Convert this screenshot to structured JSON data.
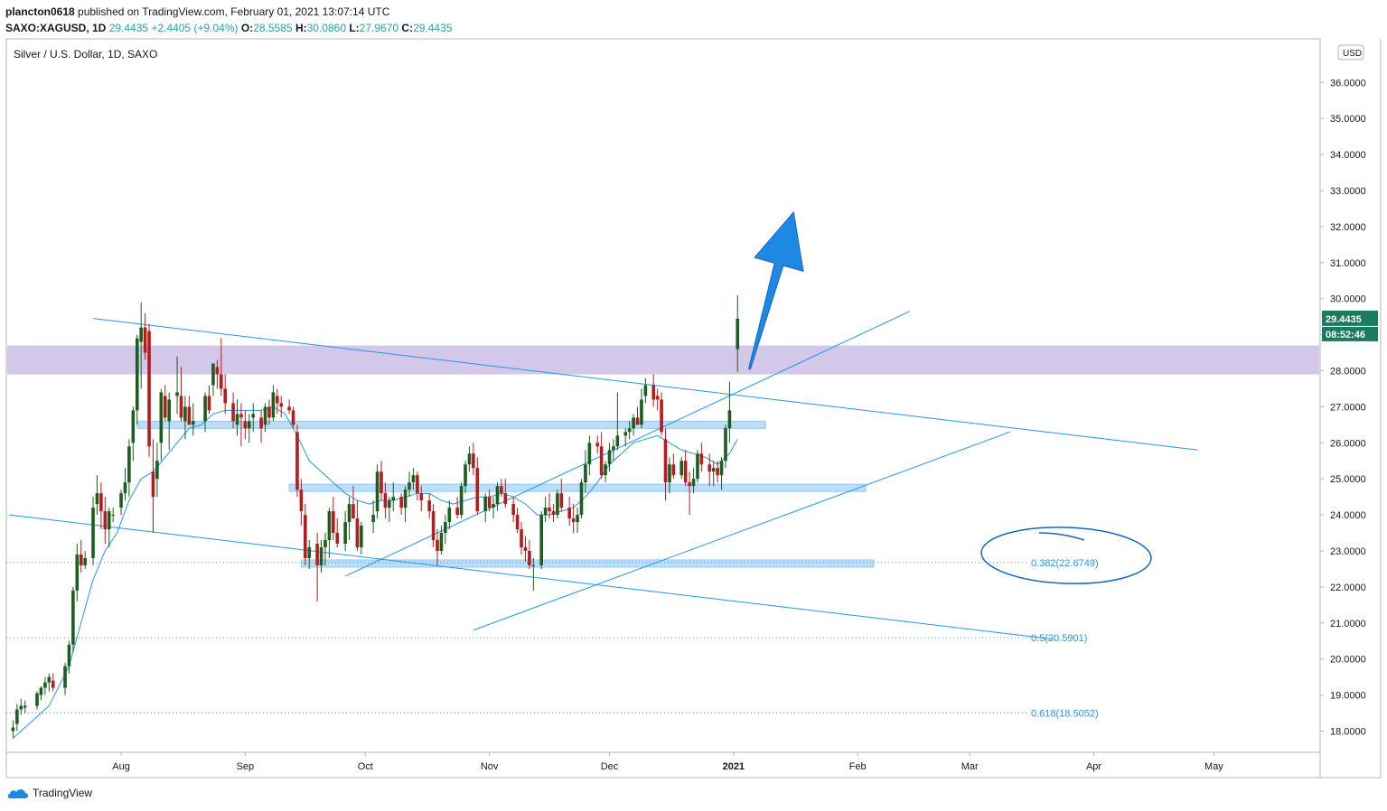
{
  "header": {
    "user": "plancton0618",
    "published_text": " published on TradingView.com, February 01, 2021 13:07:14 UTC",
    "symbol": "SAXO:XAGUSD, 1D",
    "last": "29.4435",
    "change": "+2.4405 (+9.04%)",
    "o_label": "O:",
    "o": "28.5585",
    "h_label": "H:",
    "h": "30.0860",
    "l_label": "L:",
    "l": "27.9670",
    "c_label": "C:",
    "c": "29.4435"
  },
  "footer": {
    "brand": "TradingView"
  },
  "chart_data": {
    "type": "candlestick",
    "title": "Silver / U.S. Dollar, 1D, SAXO",
    "currency_badge": "USD",
    "y_axis": {
      "range": [
        17.3,
        37.1
      ],
      "ticks": [
        "18.0000",
        "19.0000",
        "20.0000",
        "21.0000",
        "22.0000",
        "23.0000",
        "24.0000",
        "25.0000",
        "26.0000",
        "27.0000",
        "28.0000",
        "29.0000",
        "30.0000",
        "31.0000",
        "32.0000",
        "33.0000",
        "34.0000",
        "35.0000",
        "36.0000"
      ]
    },
    "x_axis": {
      "ticks": [
        {
          "label": "Aug",
          "day": 28
        },
        {
          "label": "Sep",
          "day": 59
        },
        {
          "label": "Oct",
          "day": 89
        },
        {
          "label": "Nov",
          "day": 120
        },
        {
          "label": "Dec",
          "day": 150
        },
        {
          "label": "2021",
          "day": 181,
          "bold": true
        },
        {
          "label": "Feb",
          "day": 212
        },
        {
          "label": "Mar",
          "day": 240
        },
        {
          "label": "Apr",
          "day": 271
        },
        {
          "label": "May",
          "day": 301
        }
      ]
    },
    "price_label": "29.4435",
    "countdown": "08:52:46",
    "fib_levels": [
      {
        "label": "0.382(22.6749)",
        "value": 22.6749
      },
      {
        "label": "0.5(20.5901)",
        "value": 20.5901
      },
      {
        "label": "0.618(18.5052)",
        "value": 18.5052
      }
    ],
    "resistance_zone": [
      27.9,
      28.7
    ],
    "support_zones": [
      {
        "from_day": 32,
        "to_day": 189,
        "low": 26.4,
        "high": 26.6
      },
      {
        "from_day": 70,
        "to_day": 214,
        "low": 24.65,
        "high": 24.85
      },
      {
        "from_day": 73,
        "to_day": 216,
        "low": 22.55,
        "high": 22.75
      }
    ],
    "trendlines": [
      {
        "d1": 21,
        "v1": 29.45,
        "d2": 297,
        "v2": 25.8
      },
      {
        "d1": 0,
        "v1": 24.0,
        "d2": 261,
        "v2": 20.55
      },
      {
        "d1": 116,
        "v1": 20.8,
        "d2": 250,
        "v2": 26.3
      },
      {
        "d1": 84,
        "v1": 22.3,
        "d2": 225,
        "v2": 29.65
      }
    ],
    "candles": [
      [
        1,
        18.0,
        18.3,
        17.8,
        18.1
      ],
      [
        2,
        18.2,
        18.75,
        18.0,
        18.6
      ],
      [
        3,
        18.6,
        18.9,
        18.45,
        18.7
      ],
      [
        4,
        18.65,
        18.85,
        18.5,
        18.7
      ],
      [
        7,
        18.7,
        19.1,
        18.6,
        19.05
      ],
      [
        8,
        19.0,
        19.25,
        18.85,
        19.2
      ],
      [
        9,
        19.2,
        19.5,
        19.0,
        19.35
      ],
      [
        10,
        19.35,
        19.6,
        19.1,
        19.5
      ],
      [
        11,
        19.4,
        19.6,
        19.1,
        19.2
      ],
      [
        14,
        19.2,
        19.9,
        19.0,
        19.8
      ],
      [
        15,
        19.8,
        20.5,
        19.6,
        20.4
      ],
      [
        16,
        20.4,
        22.0,
        20.2,
        21.9
      ],
      [
        17,
        21.9,
        23.2,
        21.6,
        22.9
      ],
      [
        18,
        22.9,
        23.3,
        22.4,
        22.6
      ],
      [
        19,
        22.6,
        23.0,
        22.5,
        22.8
      ],
      [
        21,
        22.8,
        24.5,
        22.6,
        24.2
      ],
      [
        22,
        24.3,
        25.1,
        24.0,
        24.6
      ],
      [
        23,
        24.6,
        24.9,
        23.6,
        24.1
      ],
      [
        24,
        24.1,
        24.5,
        23.2,
        23.6
      ],
      [
        25,
        23.6,
        24.2,
        23.1,
        24.1
      ],
      [
        26,
        24.0,
        24.2,
        23.8,
        24.0
      ],
      [
        28,
        24.2,
        24.7,
        24.0,
        24.6
      ],
      [
        29,
        24.6,
        25.3,
        24.4,
        24.9
      ],
      [
        30,
        24.9,
        26.1,
        24.5,
        25.9
      ],
      [
        31,
        26.0,
        27.0,
        25.5,
        26.9
      ],
      [
        32,
        26.9,
        29.0,
        26.5,
        28.9
      ],
      [
        33,
        28.8,
        29.9,
        27.5,
        29.2
      ],
      [
        34,
        29.2,
        29.6,
        28.3,
        28.5
      ],
      [
        35,
        29.1,
        29.3,
        25.6,
        25.9
      ],
      [
        36,
        25.2,
        26.1,
        23.5,
        24.5
      ],
      [
        37,
        25.0,
        26.0,
        24.5,
        25.5
      ],
      [
        38,
        26.0,
        27.5,
        25.5,
        27.4
      ],
      [
        39,
        27.3,
        27.6,
        26.6,
        26.7
      ],
      [
        40,
        26.6,
        27.4,
        25.8,
        27.2
      ],
      [
        42,
        27.3,
        28.4,
        26.8,
        27.4
      ],
      [
        43,
        27.3,
        28.1,
        26.6,
        26.7
      ],
      [
        44,
        26.6,
        27.3,
        26.1,
        27.0
      ],
      [
        45,
        27.0,
        27.3,
        26.5,
        26.5
      ],
      [
        46,
        26.5,
        27.1,
        26.2,
        26.6
      ],
      [
        49,
        26.6,
        27.4,
        26.3,
        27.3
      ],
      [
        50,
        27.3,
        27.6,
        26.8,
        26.9
      ],
      [
        51,
        27.6,
        28.2,
        27.3,
        28.2
      ],
      [
        52,
        28.1,
        28.3,
        27.5,
        27.9
      ],
      [
        53,
        27.9,
        28.9,
        27.3,
        27.5
      ],
      [
        54,
        27.5,
        27.9,
        26.8,
        27.1
      ],
      [
        56,
        27.1,
        27.4,
        26.4,
        26.6
      ],
      [
        57,
        26.5,
        27.2,
        26.2,
        26.8
      ],
      [
        58,
        26.8,
        27.1,
        25.9,
        26.7
      ],
      [
        59,
        26.6,
        26.9,
        26.1,
        26.4
      ],
      [
        60,
        26.4,
        26.8,
        26.0,
        26.6
      ],
      [
        61,
        26.7,
        27.1,
        26.3,
        26.8
      ],
      [
        63,
        26.7,
        26.9,
        26.0,
        26.4
      ],
      [
        64,
        26.5,
        27.1,
        26.3,
        27.0
      ],
      [
        65,
        27.0,
        27.2,
        26.5,
        26.7
      ],
      [
        66,
        26.7,
        27.6,
        26.6,
        27.4
      ],
      [
        67,
        27.3,
        27.5,
        26.8,
        27.1
      ],
      [
        68,
        27.1,
        27.3,
        26.7,
        27.0
      ],
      [
        70,
        27.0,
        27.2,
        26.8,
        26.9
      ],
      [
        71,
        26.9,
        27.0,
        26.4,
        26.5
      ],
      [
        72,
        26.3,
        26.5,
        24.5,
        24.7
      ],
      [
        73,
        24.7,
        25.0,
        23.7,
        24.1
      ],
      [
        74,
        24.0,
        24.3,
        22.6,
        22.8
      ],
      [
        75,
        22.8,
        23.3,
        22.5,
        23.1
      ],
      [
        77,
        23.2,
        23.5,
        21.6,
        22.6
      ],
      [
        78,
        22.6,
        23.3,
        22.4,
        23.1
      ],
      [
        79,
        23.1,
        23.5,
        22.6,
        23.3
      ],
      [
        80,
        23.3,
        24.2,
        22.8,
        24.1
      ],
      [
        81,
        24.1,
        24.5,
        23.3,
        23.5
      ],
      [
        82,
        23.5,
        23.9,
        23.1,
        23.2
      ],
      [
        84,
        23.2,
        24.1,
        23.0,
        23.8
      ],
      [
        85,
        23.8,
        24.5,
        23.3,
        24.3
      ],
      [
        86,
        24.3,
        24.8,
        23.9,
        23.9
      ],
      [
        87,
        23.9,
        24.4,
        23.0,
        23.1
      ],
      [
        88,
        23.1,
        23.8,
        22.9,
        23.7
      ],
      [
        91,
        23.8,
        24.4,
        23.5,
        24.0
      ],
      [
        92,
        24.1,
        25.4,
        23.9,
        25.2
      ],
      [
        93,
        25.2,
        25.5,
        24.4,
        24.6
      ],
      [
        94,
        24.6,
        24.9,
        23.9,
        24.2
      ],
      [
        95,
        24.2,
        24.5,
        23.8,
        24.4
      ],
      [
        96,
        24.4,
        24.9,
        24.1,
        24.5
      ],
      [
        98,
        24.5,
        24.6,
        24.0,
        24.2
      ],
      [
        99,
        24.2,
        24.8,
        23.8,
        24.7
      ],
      [
        100,
        24.7,
        25.2,
        24.5,
        24.9
      ],
      [
        101,
        24.9,
        25.3,
        24.7,
        25.1
      ],
      [
        102,
        25.1,
        25.2,
        24.4,
        24.6
      ],
      [
        103,
        24.6,
        24.8,
        24.1,
        24.4
      ],
      [
        105,
        24.4,
        24.6,
        23.9,
        24.1
      ],
      [
        106,
        24.1,
        24.3,
        23.1,
        23.3
      ],
      [
        107,
        23.3,
        23.6,
        22.6,
        23.0
      ],
      [
        108,
        23.0,
        23.7,
        22.9,
        23.5
      ],
      [
        109,
        23.5,
        24.0,
        23.2,
        23.8
      ],
      [
        110,
        23.8,
        24.4,
        23.6,
        24.2
      ],
      [
        112,
        24.2,
        24.5,
        23.9,
        24.0
      ],
      [
        113,
        24.0,
        24.9,
        23.9,
        24.8
      ],
      [
        114,
        24.8,
        25.5,
        24.6,
        25.4
      ],
      [
        115,
        25.4,
        25.9,
        25.2,
        25.7
      ],
      [
        116,
        25.7,
        26.0,
        25.1,
        25.3
      ],
      [
        117,
        25.3,
        25.6,
        24.0,
        24.1
      ],
      [
        119,
        24.1,
        24.6,
        23.8,
        24.5
      ],
      [
        120,
        24.5,
        24.7,
        24.1,
        24.2
      ],
      [
        121,
        24.2,
        24.5,
        23.9,
        24.3
      ],
      [
        122,
        24.3,
        24.9,
        24.1,
        24.8
      ],
      [
        123,
        24.8,
        25.0,
        24.5,
        24.6
      ],
      [
        124,
        24.6,
        25.0,
        24.2,
        24.3
      ],
      [
        126,
        24.3,
        24.5,
        23.8,
        24.0
      ],
      [
        127,
        24.0,
        24.2,
        23.5,
        23.6
      ],
      [
        128,
        23.6,
        23.8,
        22.9,
        23.1
      ],
      [
        129,
        23.1,
        23.4,
        22.7,
        23.0
      ],
      [
        130,
        23.0,
        23.3,
        22.5,
        22.6
      ],
      [
        131,
        22.6,
        22.8,
        21.9,
        22.6
      ],
      [
        133,
        22.6,
        24.1,
        22.5,
        24.0
      ],
      [
        134,
        24.0,
        24.5,
        23.8,
        24.2
      ],
      [
        135,
        24.2,
        24.6,
        23.9,
        24.1
      ],
      [
        136,
        24.1,
        24.3,
        23.8,
        24.0
      ],
      [
        137,
        24.0,
        24.7,
        23.9,
        24.6
      ],
      [
        138,
        24.6,
        25.0,
        24.1,
        24.2
      ],
      [
        140,
        24.2,
        24.5,
        23.7,
        23.9
      ],
      [
        141,
        23.9,
        24.3,
        23.5,
        23.8
      ],
      [
        142,
        23.8,
        24.2,
        23.5,
        24.0
      ],
      [
        143,
        24.0,
        25.0,
        23.9,
        24.9
      ],
      [
        144,
        24.9,
        25.8,
        24.6,
        25.4
      ],
      [
        145,
        25.4,
        26.2,
        25.1,
        26.0
      ],
      [
        147,
        26.0,
        26.2,
        25.7,
        25.9
      ],
      [
        148,
        25.9,
        26.3,
        25.0,
        25.1
      ],
      [
        149,
        25.1,
        25.5,
        24.9,
        25.4
      ],
      [
        150,
        25.4,
        26.0,
        25.2,
        25.8
      ],
      [
        151,
        25.8,
        26.1,
        25.5,
        25.9
      ],
      [
        152,
        25.9,
        27.4,
        25.8,
        26.2
      ],
      [
        154,
        26.2,
        26.4,
        25.9,
        26.3
      ],
      [
        155,
        26.3,
        26.6,
        26.1,
        26.4
      ],
      [
        156,
        26.4,
        26.8,
        26.2,
        26.7
      ],
      [
        157,
        26.7,
        27.0,
        26.5,
        26.5
      ],
      [
        158,
        26.5,
        27.5,
        26.4,
        27.2
      ],
      [
        159,
        27.3,
        27.8,
        27.1,
        27.6
      ],
      [
        161,
        27.6,
        27.9,
        27.0,
        27.2
      ],
      [
        162,
        27.3,
        27.5,
        26.9,
        27.2
      ],
      [
        163,
        27.2,
        27.4,
        26.2,
        26.3
      ],
      [
        164,
        26.1,
        26.4,
        24.4,
        24.9
      ],
      [
        165,
        24.9,
        25.6,
        24.6,
        25.4
      ],
      [
        166,
        25.4,
        25.7,
        25.0,
        25.1
      ],
      [
        168,
        25.1,
        25.6,
        25.0,
        25.5
      ],
      [
        169,
        25.5,
        25.8,
        24.8,
        24.9
      ],
      [
        170,
        24.9,
        25.2,
        24.0,
        24.8
      ],
      [
        171,
        24.8,
        25.3,
        24.6,
        25.0
      ],
      [
        172,
        25.0,
        25.8,
        24.9,
        25.7
      ],
      [
        173,
        25.7,
        26.0,
        25.2,
        25.4
      ],
      [
        175,
        25.4,
        25.7,
        24.8,
        25.2
      ],
      [
        176,
        25.2,
        25.5,
        24.8,
        25.3
      ],
      [
        177,
        25.3,
        25.5,
        24.9,
        25.1
      ],
      [
        178,
        25.1,
        25.6,
        24.7,
        25.5
      ],
      [
        179,
        25.5,
        26.5,
        25.3,
        26.4
      ],
      [
        180,
        26.4,
        27.7,
        26.0,
        26.9
      ],
      [
        182,
        28.6,
        30.1,
        27.97,
        29.4435
      ]
    ],
    "moving_average": [
      [
        1,
        17.8
      ],
      [
        5,
        18.2
      ],
      [
        10,
        18.7
      ],
      [
        15,
        19.8
      ],
      [
        18,
        21.0
      ],
      [
        21,
        22.2
      ],
      [
        24,
        23.0
      ],
      [
        27,
        23.5
      ],
      [
        30,
        24.4
      ],
      [
        33,
        25.0
      ],
      [
        36,
        25.2
      ],
      [
        39,
        25.6
      ],
      [
        42,
        26.0
      ],
      [
        45,
        26.4
      ],
      [
        48,
        26.5
      ],
      [
        51,
        26.8
      ],
      [
        54,
        26.9
      ],
      [
        57,
        26.9
      ],
      [
        60,
        26.9
      ],
      [
        63,
        26.9
      ],
      [
        66,
        27.0
      ],
      [
        69,
        26.8
      ],
      [
        72,
        26.2
      ],
      [
        75,
        25.5
      ],
      [
        78,
        25.2
      ],
      [
        81,
        24.9
      ],
      [
        84,
        24.6
      ],
      [
        87,
        24.4
      ],
      [
        90,
        24.3
      ],
      [
        93,
        24.4
      ],
      [
        96,
        24.4
      ],
      [
        99,
        24.5
      ],
      [
        102,
        24.6
      ],
      [
        105,
        24.6
      ],
      [
        108,
        24.4
      ],
      [
        111,
        24.3
      ],
      [
        114,
        24.4
      ],
      [
        117,
        24.5
      ],
      [
        120,
        24.5
      ],
      [
        123,
        24.6
      ],
      [
        126,
        24.5
      ],
      [
        129,
        24.3
      ],
      [
        132,
        24.0
      ],
      [
        135,
        24.0
      ],
      [
        138,
        24.1
      ],
      [
        141,
        24.2
      ],
      [
        144,
        24.5
      ],
      [
        147,
        24.9
      ],
      [
        150,
        25.4
      ],
      [
        153,
        25.7
      ],
      [
        156,
        26.0
      ],
      [
        159,
        26.1
      ],
      [
        162,
        26.2
      ],
      [
        165,
        26.0
      ],
      [
        168,
        25.8
      ],
      [
        171,
        25.7
      ],
      [
        174,
        25.6
      ],
      [
        177,
        25.4
      ],
      [
        180,
        25.7
      ],
      [
        182,
        26.1
      ]
    ],
    "arrow": {
      "from_day": 185,
      "from_value": 28.05,
      "to_day": 196,
      "to_value": 32.4
    }
  }
}
